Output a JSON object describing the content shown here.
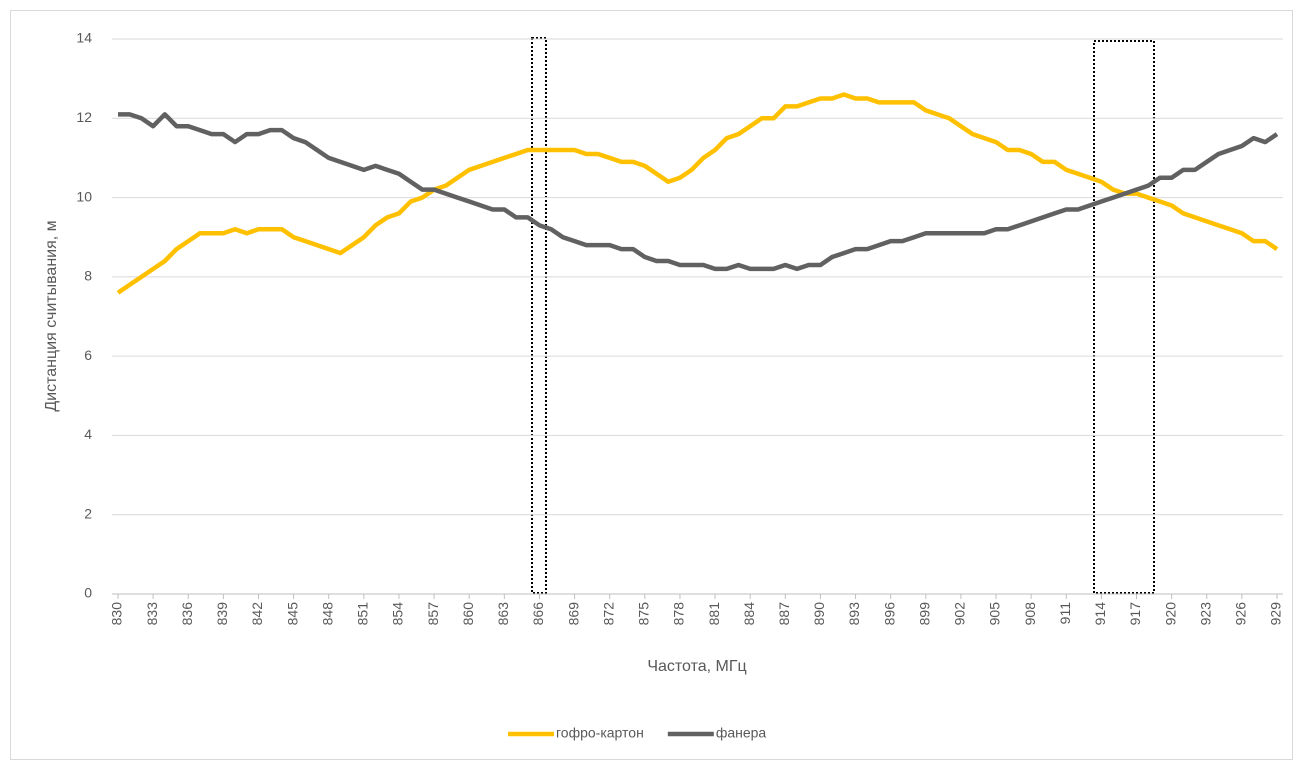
{
  "chart_data": {
    "type": "line",
    "ylabel": "Дистанция считывания, м",
    "xlabel": "Частота, МГц",
    "categories": [
      "830",
      null,
      null,
      "833",
      null,
      null,
      "836",
      null,
      null,
      "839",
      null,
      null,
      "842",
      null,
      null,
      "845",
      null,
      null,
      "848",
      null,
      null,
      "851",
      null,
      null,
      "854",
      null,
      null,
      "857",
      null,
      null,
      "860",
      null,
      null,
      "863",
      null,
      null,
      "866",
      null,
      null,
      "869",
      null,
      null,
      "872",
      null,
      null,
      "875",
      null,
      null,
      "878",
      null,
      null,
      "881",
      null,
      null,
      "884",
      null,
      null,
      "887",
      null,
      null,
      "890",
      null,
      null,
      "893",
      null,
      null,
      "896",
      null,
      null,
      "899",
      null,
      null,
      "902",
      null,
      null,
      "905",
      null,
      null,
      "908",
      null,
      null,
      "911",
      null,
      null,
      "914",
      null,
      null,
      "917",
      null,
      null,
      "920",
      null,
      null,
      "923",
      null,
      null,
      "926",
      null,
      null,
      "929"
    ],
    "series": [
      {
        "name": "гофро-картон",
        "color": "#ffc000",
        "values": [
          7.6,
          7.8,
          8.0,
          8.2,
          8.4,
          8.7,
          8.9,
          9.1,
          9.1,
          9.1,
          9.2,
          9.1,
          9.2,
          9.2,
          9.2,
          9.0,
          8.9,
          8.8,
          8.7,
          8.6,
          8.8,
          9.0,
          9.3,
          9.5,
          9.6,
          9.9,
          10.0,
          10.2,
          10.3,
          10.5,
          10.7,
          10.8,
          10.9,
          11.0,
          11.1,
          11.2,
          11.2,
          11.2,
          11.2,
          11.2,
          11.1,
          11.1,
          11.0,
          10.9,
          10.9,
          10.8,
          10.6,
          10.4,
          10.5,
          10.7,
          11.0,
          11.2,
          11.5,
          11.6,
          11.8,
          12.0,
          12.0,
          12.3,
          12.3,
          12.4,
          12.5,
          12.5,
          12.6,
          12.5,
          12.5,
          12.4,
          12.4,
          12.4,
          12.4,
          12.2,
          12.1,
          12.0,
          11.8,
          11.6,
          11.5,
          11.4,
          11.2,
          11.2,
          11.1,
          10.9,
          10.9,
          10.7,
          10.6,
          10.5,
          10.4,
          10.2,
          10.1,
          10.1,
          10.0,
          9.9,
          9.8,
          9.6,
          9.5,
          9.4,
          9.3,
          9.2,
          9.1,
          8.9,
          8.9,
          8.7
        ]
      },
      {
        "name": "фанера",
        "color": "#616161",
        "values": [
          12.1,
          12.1,
          12.0,
          11.8,
          12.1,
          11.8,
          11.8,
          11.7,
          11.6,
          11.6,
          11.4,
          11.6,
          11.6,
          11.7,
          11.7,
          11.5,
          11.4,
          11.2,
          11.0,
          10.9,
          10.8,
          10.7,
          10.8,
          10.7,
          10.6,
          10.4,
          10.2,
          10.2,
          10.1,
          10.0,
          9.9,
          9.8,
          9.7,
          9.7,
          9.5,
          9.5,
          9.3,
          9.2,
          9.0,
          8.9,
          8.8,
          8.8,
          8.8,
          8.7,
          8.7,
          8.5,
          8.4,
          8.4,
          8.3,
          8.3,
          8.3,
          8.2,
          8.2,
          8.3,
          8.2,
          8.2,
          8.2,
          8.3,
          8.2,
          8.3,
          8.3,
          8.5,
          8.6,
          8.7,
          8.7,
          8.8,
          8.9,
          8.9,
          9.0,
          9.1,
          9.1,
          9.1,
          9.1,
          9.1,
          9.1,
          9.2,
          9.2,
          9.3,
          9.4,
          9.5,
          9.6,
          9.7,
          9.7,
          9.8,
          9.9,
          10.0,
          10.1,
          10.2,
          10.3,
          10.5,
          10.5,
          10.7,
          10.7,
          10.9,
          11.1,
          11.2,
          11.3,
          11.5,
          11.4,
          11.6
        ]
      }
    ],
    "ylim": [
      0,
      14
    ],
    "yticks": [
      0,
      2,
      4,
      6,
      8,
      10,
      12,
      14
    ],
    "grid": true,
    "legend": "bottom"
  }
}
